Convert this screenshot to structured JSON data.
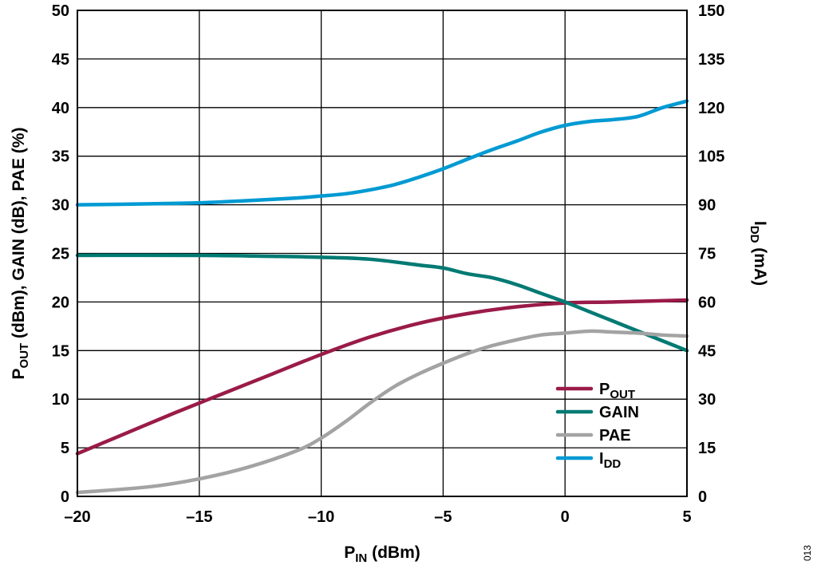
{
  "chart_data": {
    "type": "line",
    "xlabel": {
      "main": "P",
      "sub": "IN",
      "rest": " (dBm)"
    },
    "ylabel_left": [
      {
        "t": "P",
        "sub": false
      },
      {
        "t": "OUT",
        "sub": true
      },
      {
        "t": " (dBm), GAIN (dB), PAE (%)",
        "sub": false
      }
    ],
    "ylabel_right": {
      "main": "I",
      "sub": "DD",
      "rest": " (mA)"
    },
    "xlim": [
      -20,
      5
    ],
    "ylim_left": [
      0,
      50
    ],
    "ylim_right": [
      0,
      150
    ],
    "x_ticks": [
      -20,
      -15,
      -10,
      -5,
      0,
      5
    ],
    "x_tick_labels": [
      "–20",
      "–15",
      "–10",
      "–5",
      "0",
      "5"
    ],
    "y_left_ticks": [
      0,
      5,
      10,
      15,
      20,
      25,
      30,
      35,
      40,
      45,
      50
    ],
    "y_left_tick_labels": [
      "0",
      "5",
      "10",
      "15",
      "20",
      "25",
      "30",
      "35",
      "40",
      "45",
      "50"
    ],
    "y_right_ticks": [
      0,
      15,
      30,
      45,
      60,
      75,
      90,
      105,
      120,
      135,
      150
    ],
    "y_right_tick_labels": [
      "0",
      "15",
      "30",
      "45",
      "60",
      "75",
      "90",
      "105",
      "120",
      "135",
      "150"
    ],
    "grid": true,
    "legend_position": "bottom-right",
    "series": [
      {
        "name": "P",
        "name_sub": "OUT",
        "axis": "left",
        "color": "#9a1b48",
        "x": [
          -20,
          -18,
          -16,
          -14,
          -12,
          -10,
          -8,
          -6,
          -4,
          -2,
          0,
          2,
          5
        ],
        "y": [
          4.4,
          6.5,
          8.6,
          10.6,
          12.6,
          14.6,
          16.4,
          17.8,
          18.8,
          19.5,
          19.9,
          20.0,
          20.2
        ]
      },
      {
        "name": "GAIN",
        "name_sub": "",
        "axis": "left",
        "color": "#007a73",
        "x": [
          -20,
          -15,
          -12,
          -10,
          -8,
          -6,
          -5,
          -4,
          -3,
          -2,
          -1,
          0,
          1,
          2,
          3,
          4,
          5
        ],
        "y": [
          24.8,
          24.8,
          24.7,
          24.6,
          24.4,
          23.8,
          23.5,
          22.9,
          22.5,
          21.8,
          20.9,
          20.0,
          19.0,
          18.0,
          17.0,
          16.0,
          15.0
        ]
      },
      {
        "name": "PAE",
        "name_sub": "",
        "axis": "left",
        "color": "#a3a3a3",
        "x": [
          -20,
          -17,
          -15,
          -13,
          -11,
          -10,
          -9,
          -8,
          -7,
          -6,
          -5,
          -4,
          -3,
          -2,
          -1,
          0,
          1,
          2,
          3,
          4,
          5
        ],
        "y": [
          0.4,
          1.0,
          1.8,
          3.0,
          4.7,
          6.0,
          7.7,
          9.6,
          11.3,
          12.6,
          13.7,
          14.7,
          15.5,
          16.1,
          16.6,
          16.8,
          17.0,
          16.9,
          16.8,
          16.6,
          16.5
        ]
      },
      {
        "name": "I",
        "name_sub": "DD",
        "axis": "right",
        "color": "#009ad3",
        "x": [
          -20,
          -17,
          -15,
          -13,
          -11,
          -10,
          -9,
          -8,
          -7,
          -6,
          -5,
          -4,
          -3,
          -2,
          -1,
          0,
          1,
          2,
          3,
          4,
          5
        ],
        "y": [
          90.0,
          90.3,
          90.6,
          91.3,
          92.1,
          92.7,
          93.4,
          94.6,
          96.2,
          98.5,
          101.1,
          104.1,
          107.0,
          109.6,
          112.4,
          114.5,
          115.7,
          116.3,
          117.3,
          120.0,
          122.0
        ]
      }
    ]
  },
  "figure_number": "013"
}
